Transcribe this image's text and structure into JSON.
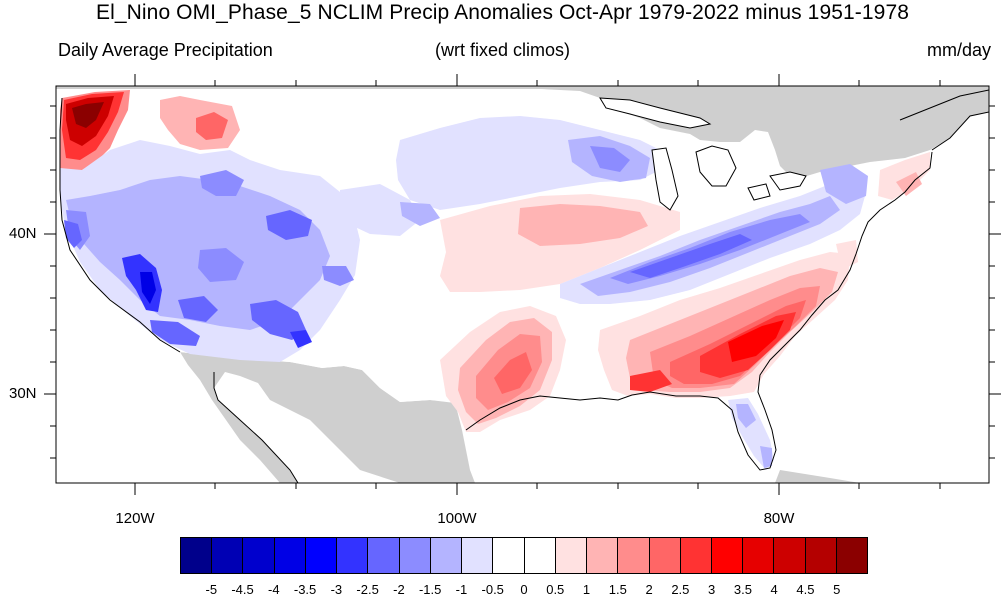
{
  "title": "El_Nino OMI_Phase_5 NCLIM Precip Anomalies Oct-Apr 1979-2022 minus 1951-1978",
  "subtitle_left": "Daily Average Precipitation",
  "subtitle_center": "(wrt fixed climos)",
  "subtitle_right": "mm/day",
  "lat_labels": [
    "40N",
    "30N"
  ],
  "lon_labels": [
    "120W",
    "100W",
    "80W"
  ],
  "colorbar": {
    "colors": [
      "#00008b",
      "#0000b4",
      "#0000cd",
      "#0000e6",
      "#0000ff",
      "#3333ff",
      "#6666ff",
      "#8c8cff",
      "#b4b4ff",
      "#e1e1ff",
      "#ffffff",
      "#ffffff",
      "#ffe1e1",
      "#ffb4b4",
      "#ff8c8c",
      "#ff6666",
      "#ff3333",
      "#ff0000",
      "#e60000",
      "#cd0000",
      "#b40000",
      "#8b0000"
    ],
    "labels": [
      "-5",
      "-4.5",
      "-4",
      "-3.5",
      "-3",
      "-2.5",
      "-2",
      "-1.5",
      "-1",
      "-0.5",
      "0",
      "0.5",
      "1",
      "1.5",
      "2",
      "2.5",
      "3",
      "3.5",
      "4",
      "4.5",
      "5"
    ]
  },
  "colors": {
    "land_no_data": "#cfcfcf",
    "ocean": "#ffffff",
    "coastline": "#000000"
  },
  "map_extent": {
    "lon": [
      -125,
      -65
    ],
    "lat": [
      24.5,
      49.5
    ]
  }
}
